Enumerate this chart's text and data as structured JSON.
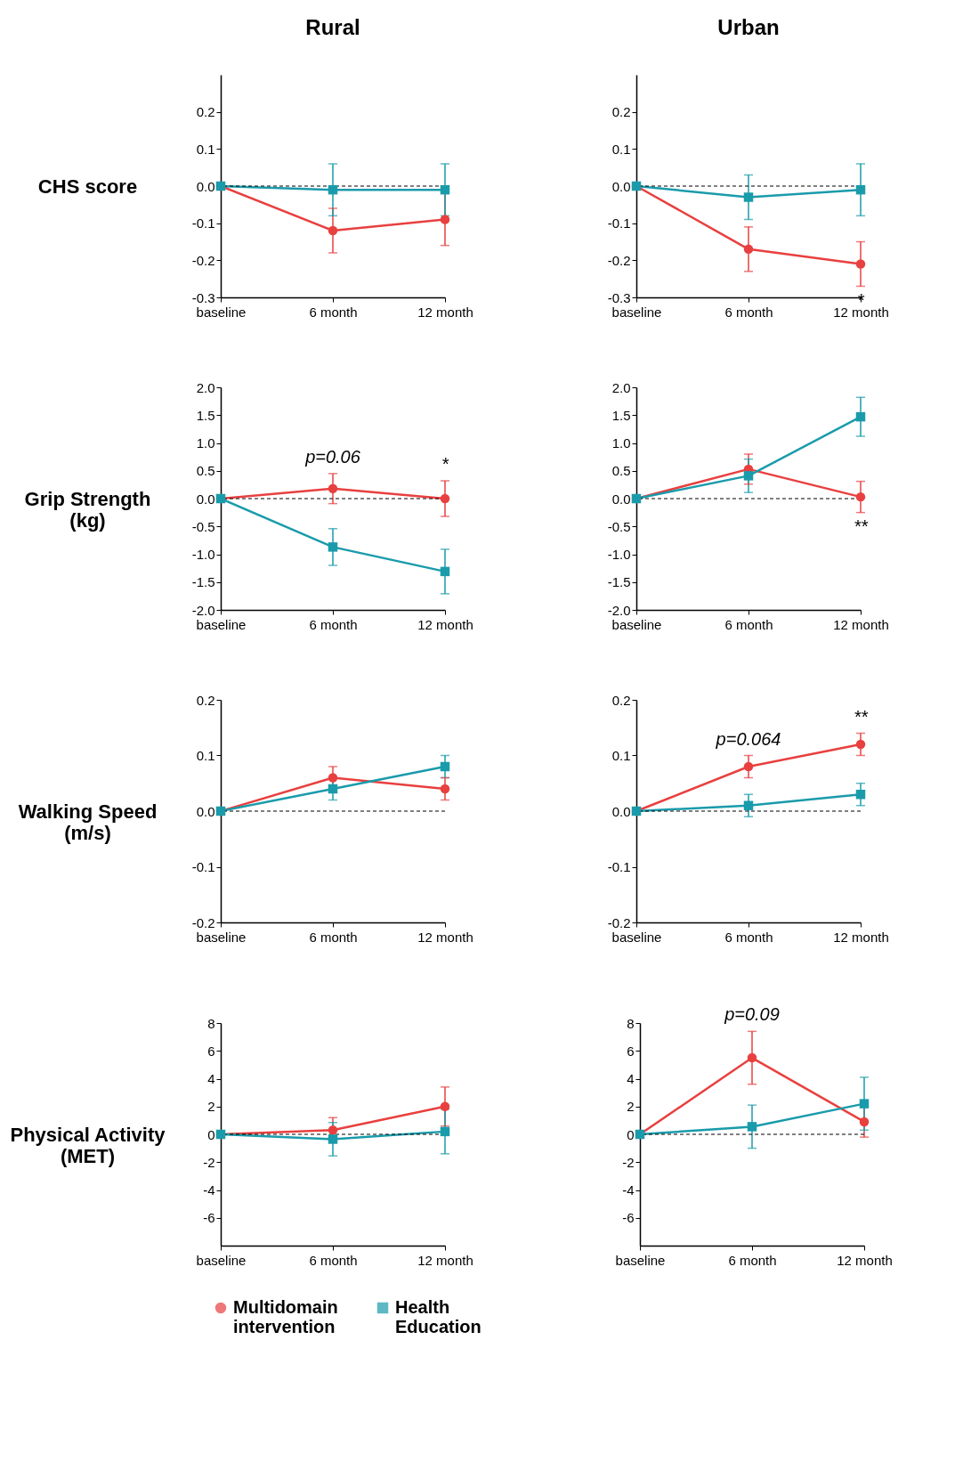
{
  "chart_data": [
    {
      "type": "line",
      "title": "Rural",
      "ylabel": "CHS score",
      "categories": [
        "baseline",
        "6 month",
        "12 month"
      ],
      "ylim": [
        -0.3,
        0.3
      ],
      "yticks": [
        -0.3,
        -0.2,
        -0.1,
        {
          "value": 0,
          "label": "0.0"
        },
        0.1,
        0.2
      ],
      "ref_lines": [
        {
          "axis": "y",
          "value": 0,
          "line_style": "dashed",
          "color": "#000000"
        }
      ],
      "series": [
        {
          "color": "#e8403f",
          "marker": "circle",
          "values": [
            0,
            -0.12,
            -0.09
          ],
          "errors": [
            null,
            0.06,
            0.07
          ]
        },
        {
          "color": "#1a9bab",
          "marker": "square",
          "values": [
            0,
            -0.01,
            -0.01
          ],
          "errors": [
            null,
            0.07,
            0.07
          ]
        }
      ]
    },
    {
      "type": "line",
      "title": "Urban",
      "categories": [
        "baseline",
        "6 month",
        "12 month"
      ],
      "ylim": [
        -0.3,
        0.3
      ],
      "yticks": [
        -0.3,
        -0.2,
        -0.1,
        {
          "value": 0,
          "label": "0.0"
        },
        0.1,
        0.2
      ],
      "ref_lines": [
        {
          "axis": "y",
          "value": 0,
          "line_style": "dashed",
          "color": "#000000"
        }
      ],
      "annotations": [
        {
          "text": "*",
          "x": "12 month",
          "y": -0.21
        }
      ],
      "series": [
        {
          "color": "#e8403f",
          "marker": "circle",
          "values": [
            0,
            -0.17,
            -0.21
          ],
          "errors": [
            null,
            0.06,
            0.06
          ]
        },
        {
          "color": "#1a9bab",
          "marker": "square",
          "values": [
            0,
            -0.03,
            -0.01
          ],
          "errors": [
            null,
            0.06,
            0.07
          ]
        }
      ]
    },
    {
      "type": "line",
      "ylabel": "Grip Strength (kg)",
      "categories": [
        "baseline",
        "6 month",
        "12 month"
      ],
      "ylim": [
        -2,
        2
      ],
      "yticks": [
        {
          "value": -2,
          "label": "-2.0"
        },
        -1.5,
        {
          "value": -1,
          "label": "-1.0"
        },
        -0.5,
        {
          "value": 0,
          "label": "0.0"
        },
        0.5,
        {
          "value": 1,
          "label": "1.0"
        },
        1.5,
        {
          "value": 2,
          "label": "2.0"
        }
      ],
      "ref_lines": [
        {
          "axis": "y",
          "value": 0,
          "line_style": "dashed",
          "color": "#000000"
        }
      ],
      "annotations": [
        {
          "text": "p=0.06",
          "x": "6 month",
          "y": 0.18
        },
        {
          "text": "*",
          "x": "12 month",
          "y": 0
        }
      ],
      "series": [
        {
          "color": "#e8403f",
          "marker": "circle",
          "values": [
            0,
            0.18,
            0
          ],
          "errors": [
            null,
            0.27,
            0.32
          ]
        },
        {
          "color": "#1a9bab",
          "marker": "square",
          "values": [
            0,
            -0.87,
            -1.31
          ],
          "errors": [
            null,
            0.33,
            0.4
          ]
        }
      ]
    },
    {
      "type": "line",
      "categories": [
        "baseline",
        "6 month",
        "12 month"
      ],
      "ylim": [
        -2,
        2
      ],
      "yticks": [
        {
          "value": -2,
          "label": "-2.0"
        },
        -1.5,
        {
          "value": -1,
          "label": "-1.0"
        },
        -0.5,
        {
          "value": 0,
          "label": "0.0"
        },
        0.5,
        {
          "value": 1,
          "label": "1.0"
        },
        1.5,
        {
          "value": 2,
          "label": "2.0"
        }
      ],
      "ref_lines": [
        {
          "axis": "y",
          "value": 0,
          "line_style": "dashed",
          "color": "#000000"
        }
      ],
      "annotations": [
        {
          "text": "**",
          "x": "12 month",
          "y": 0.03
        }
      ],
      "series": [
        {
          "color": "#e8403f",
          "marker": "circle",
          "values": [
            0,
            0.53,
            0.03
          ],
          "errors": [
            null,
            0.27,
            0.28
          ]
        },
        {
          "color": "#1a9bab",
          "marker": "square",
          "values": [
            0,
            0.41,
            1.47
          ],
          "errors": [
            null,
            0.3,
            0.35
          ]
        }
      ]
    },
    {
      "type": "line",
      "ylabel": "Walking Speed (m/s)",
      "categories": [
        "baseline",
        "6 month",
        "12 month"
      ],
      "ylim": [
        -0.2,
        0.2
      ],
      "yticks": [
        -0.2,
        -0.1,
        {
          "value": 0,
          "label": "0.0"
        },
        0.1,
        0.2
      ],
      "ref_lines": [
        {
          "axis": "y",
          "value": 0,
          "line_style": "dashed",
          "color": "#000000"
        }
      ],
      "series": [
        {
          "color": "#e8403f",
          "marker": "circle",
          "values": [
            0,
            0.06,
            0.04
          ],
          "errors": [
            null,
            0.02,
            0.02
          ]
        },
        {
          "color": "#1a9bab",
          "marker": "square",
          "values": [
            0,
            0.04,
            0.08
          ],
          "errors": [
            null,
            0.02,
            0.02
          ]
        }
      ]
    },
    {
      "type": "line",
      "categories": [
        "baseline",
        "6 month",
        "12 month"
      ],
      "ylim": [
        -0.2,
        0.2
      ],
      "yticks": [
        -0.2,
        -0.1,
        {
          "value": 0,
          "label": "0.0"
        },
        0.1,
        0.2
      ],
      "ref_lines": [
        {
          "axis": "y",
          "value": 0,
          "line_style": "dashed",
          "color": "#000000"
        }
      ],
      "annotations": [
        {
          "text": "p=0.064",
          "x": "6 month",
          "y": 0.08
        },
        {
          "text": "**",
          "x": "12 month",
          "y": 0.12
        }
      ],
      "series": [
        {
          "color": "#e8403f",
          "marker": "circle",
          "values": [
            0,
            0.08,
            0.12
          ],
          "errors": [
            null,
            0.02,
            0.02
          ]
        },
        {
          "color": "#1a9bab",
          "marker": "square",
          "values": [
            0,
            0.01,
            0.03
          ],
          "errors": [
            null,
            0.02,
            0.02
          ]
        }
      ]
    },
    {
      "type": "line",
      "ylabel": "Physical Activity (MET)",
      "categories": [
        "baseline",
        "6 month",
        "12 month"
      ],
      "ylim": [
        -8,
        8
      ],
      "yticks": [
        -6,
        -4,
        -2,
        0,
        2,
        4,
        6,
        8
      ],
      "ref_lines": [
        {
          "axis": "y",
          "value": 0,
          "line_style": "dashed",
          "color": "#000000"
        }
      ],
      "legend": "bottom",
      "series": [
        {
          "name": "Multidomain intervention",
          "color": "#e8403f",
          "marker": "circle",
          "values": [
            0,
            0.3,
            2.0
          ],
          "errors": [
            null,
            0.9,
            1.4
          ]
        },
        {
          "name": "Health Education",
          "color": "#1a9bab",
          "marker": "square",
          "values": [
            0,
            -0.35,
            0.2
          ],
          "errors": [
            null,
            1.2,
            1.6
          ]
        }
      ]
    },
    {
      "type": "line",
      "categories": [
        "baseline",
        "6 month",
        "12 month"
      ],
      "ylim": [
        -8,
        8
      ],
      "yticks": [
        -6,
        -4,
        -2,
        0,
        2,
        4,
        6,
        8
      ],
      "ref_lines": [
        {
          "axis": "y",
          "value": 0,
          "line_style": "dashed",
          "color": "#000000"
        }
      ],
      "annotations": [
        {
          "text": "p=0.09",
          "x": "6 month",
          "y": 5.5
        }
      ],
      "series": [
        {
          "color": "#e8403f",
          "marker": "circle",
          "values": [
            0,
            5.5,
            0.9
          ],
          "errors": [
            null,
            1.9,
            1.1
          ]
        },
        {
          "color": "#1a9bab",
          "marker": "square",
          "values": [
            0,
            0.55,
            2.2
          ],
          "errors": [
            null,
            1.55,
            1.9
          ]
        }
      ]
    }
  ]
}
